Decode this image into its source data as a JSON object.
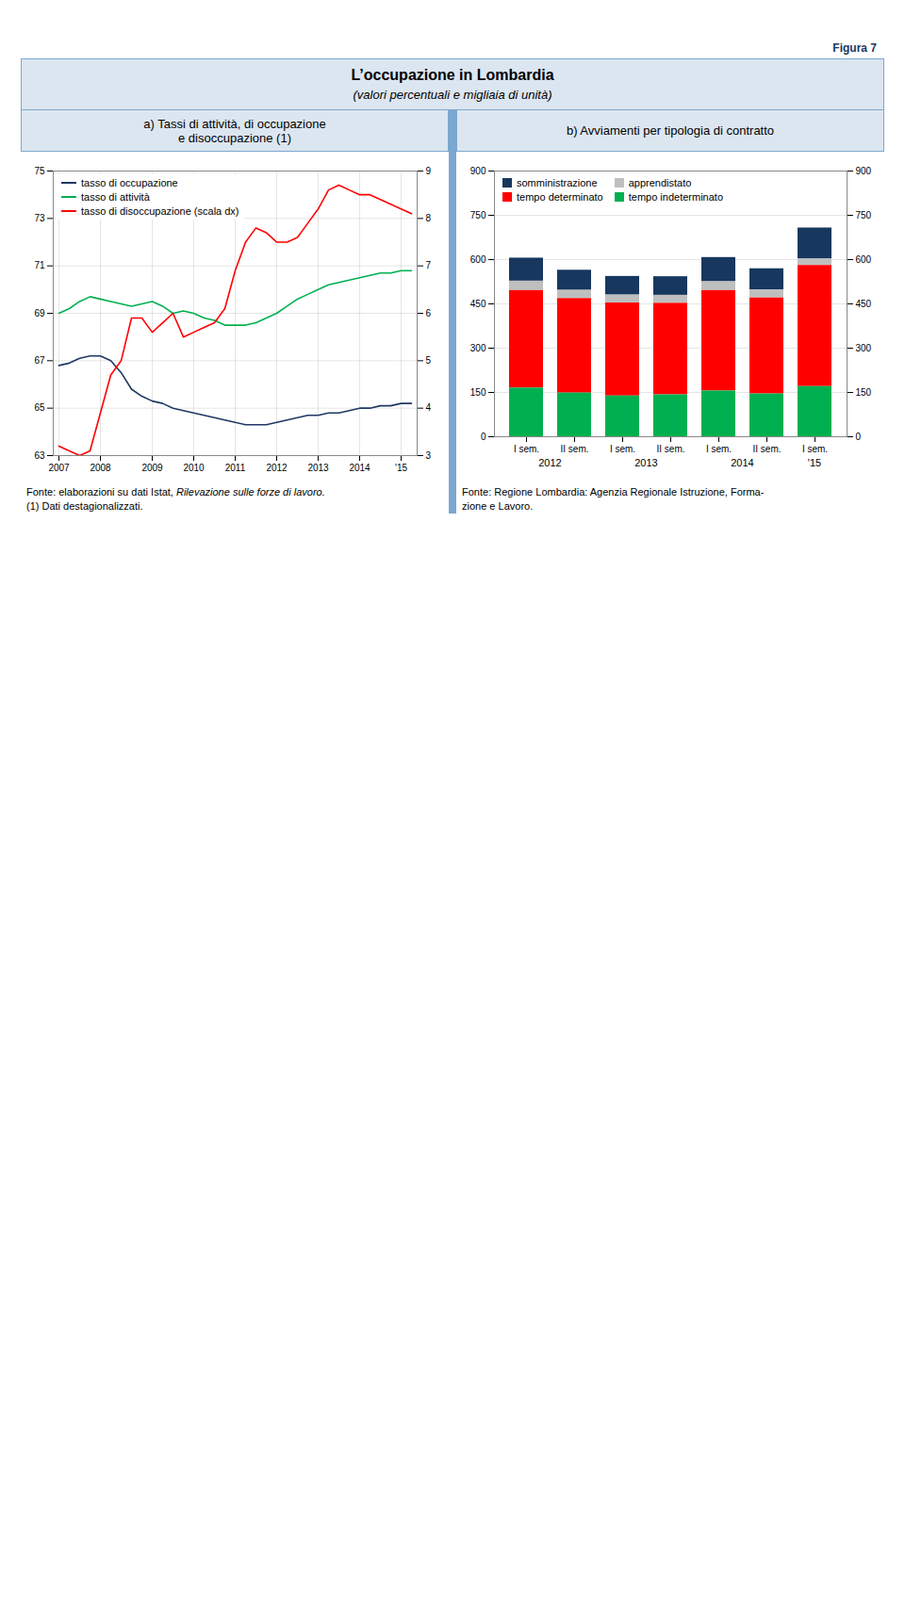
{
  "figure_label": "Figura 7",
  "title": "L’occupazione in Lombardia",
  "subtitle": "(valori percentuali e migliaia di unità)",
  "chart_data": [
    {
      "type": "line",
      "title": "a) Tassi di attività, di occupazione\ne disoccupazione (1)",
      "categories": [
        "2007",
        null,
        null,
        null,
        "2008",
        null,
        null,
        null,
        null,
        "2009",
        null,
        null,
        null,
        "2010",
        null,
        null,
        null,
        "2011",
        null,
        null,
        null,
        "2012",
        null,
        null,
        null,
        "2013",
        null,
        null,
        null,
        "2014",
        null,
        null,
        null,
        "'15",
        null
      ],
      "series": [
        {
          "name": "tasso di occupazione",
          "color": "#1F3864",
          "values": [
            66.8,
            66.9,
            67.1,
            67.2,
            67.2,
            67.0,
            66.5,
            65.8,
            65.5,
            65.3,
            65.2,
            65.0,
            64.9,
            64.8,
            64.7,
            64.6,
            64.5,
            64.4,
            64.3,
            64.3,
            64.3,
            64.4,
            64.5,
            64.6,
            64.7,
            64.7,
            64.8,
            64.8,
            64.9,
            65.0,
            65.0,
            65.1,
            65.1,
            65.2,
            65.2
          ]
        },
        {
          "name": "tasso di attività",
          "color": "#00B050",
          "values": [
            69.0,
            69.2,
            69.5,
            69.7,
            69.6,
            69.5,
            69.4,
            69.3,
            69.4,
            69.5,
            69.3,
            69.0,
            69.1,
            69.0,
            68.8,
            68.7,
            68.5,
            68.5,
            68.5,
            68.6,
            68.8,
            69.0,
            69.3,
            69.6,
            69.8,
            70.0,
            70.2,
            70.3,
            70.4,
            70.5,
            70.6,
            70.7,
            70.7,
            70.8,
            70.8
          ]
        },
        {
          "name": "tasso di disoccupazione (scala dx)",
          "color": "#FF0000",
          "axis": "y2",
          "values": [
            3.2,
            3.1,
            3.0,
            3.1,
            3.9,
            4.7,
            5.0,
            5.9,
            5.9,
            5.6,
            5.8,
            6.0,
            5.5,
            5.6,
            5.7,
            5.8,
            6.1,
            6.9,
            7.5,
            7.8,
            7.7,
            7.5,
            7.5,
            7.6,
            7.9,
            8.2,
            8.6,
            8.7,
            8.6,
            8.5,
            8.5,
            8.4,
            8.3,
            8.2,
            8.1
          ]
        }
      ],
      "ylim": [
        63,
        75
      ],
      "yticks": [
        63,
        65,
        67,
        69,
        71,
        73,
        75
      ],
      "y2lim": [
        3,
        9
      ],
      "y2ticks": [
        3,
        4,
        5,
        6,
        7,
        8,
        9
      ],
      "grid": true,
      "legend": "upper left",
      "source": [
        {
          "text": "Fonte: elaborazioni su dati Istat, "
        },
        {
          "text": "Rilevazione sulle forze di lavoro.",
          "style": "italic"
        }
      ],
      "notes": [
        "(1) Dati destagionalizzati."
      ]
    },
    {
      "type": "bar",
      "stacked": true,
      "title": "b) Avviamenti per tipologia di contratto",
      "categories": [
        "I sem.",
        "II sem.",
        "I sem.",
        "II sem.",
        "I sem.",
        "II sem.",
        "I sem."
      ],
      "x_groups": [
        {
          "label": "2012",
          "size": 2
        },
        {
          "label": "2013",
          "size": 2
        },
        {
          "label": "2014",
          "size": 2
        },
        {
          "label": "'15",
          "size": 1
        }
      ],
      "series": [
        {
          "name": "somministrazione",
          "color": "#17375E",
          "values": [
            78,
            68,
            63,
            63,
            82,
            72,
            105
          ]
        },
        {
          "name": "apprendistato",
          "color": "#BFBFBF",
          "values": [
            32,
            28,
            27,
            27,
            30,
            27,
            22
          ]
        },
        {
          "name": "tempo determinato",
          "color": "#FF0000",
          "values": [
            330,
            320,
            315,
            310,
            340,
            325,
            410
          ]
        },
        {
          "name": "tempo indeterminato",
          "color": "#00B050",
          "values": [
            165,
            148,
            138,
            142,
            155,
            145,
            170
          ]
        }
      ],
      "ylim": [
        0,
        900
      ],
      "yticks": [
        0,
        150,
        300,
        450,
        600,
        750,
        900
      ],
      "y2lim": [
        0,
        900
      ],
      "y2ticks": [
        0,
        150,
        300,
        450,
        600,
        750,
        900
      ],
      "grid": "y",
      "legend": "upper left",
      "source": [
        {
          "text": "Fonte: Regione Lombardia: Agenzia Regionale Istruzione, Forma-\nzione e Lavoro."
        }
      ]
    }
  ]
}
